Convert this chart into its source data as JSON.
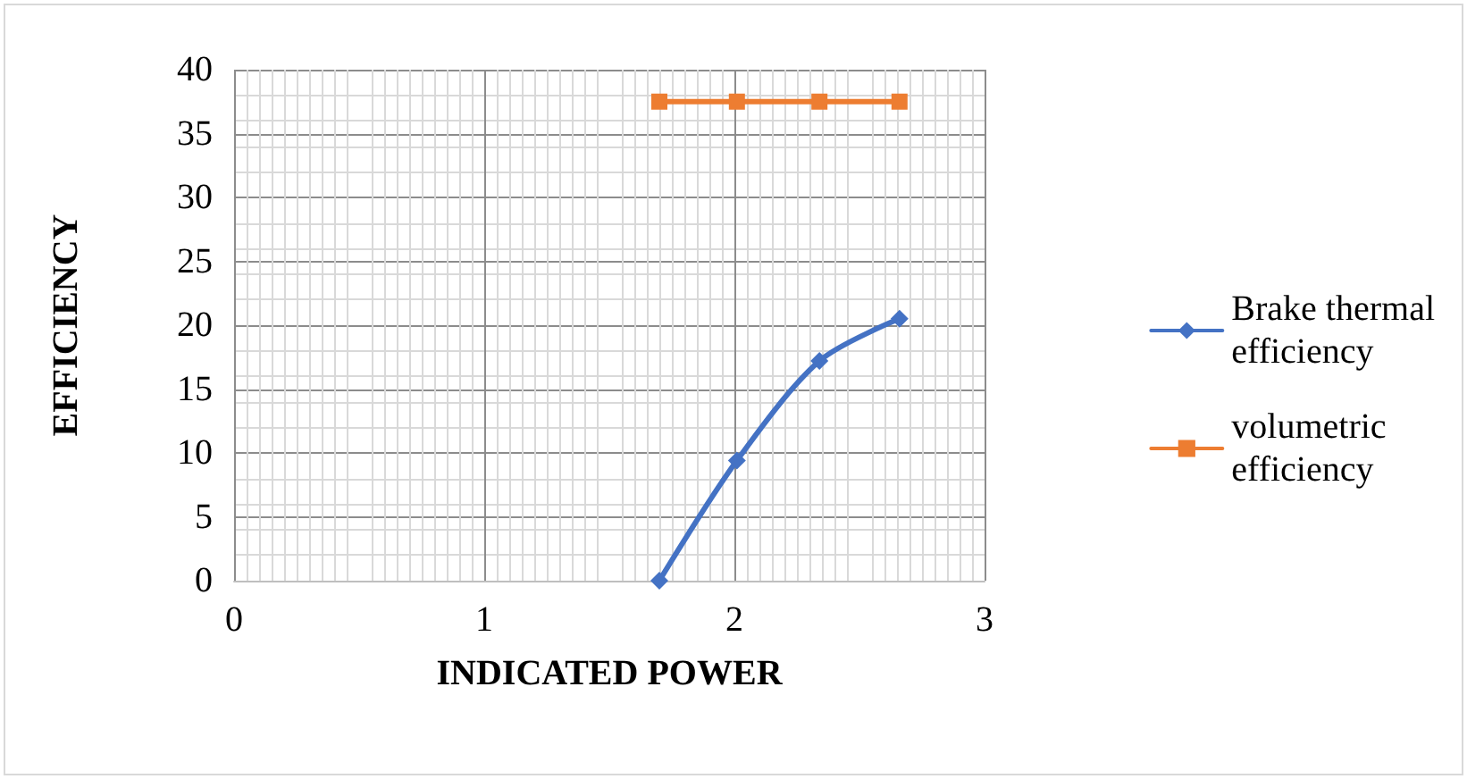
{
  "chart_data": {
    "type": "line",
    "xlabel": "INDICATED POWER",
    "ylabel": "EFFICIENCY",
    "series": [
      {
        "name": "Brake thermal efficiency",
        "color": "#4472c4",
        "x": [
          1.7,
          2.01,
          2.34,
          2.66
        ],
        "values": [
          0,
          9.4,
          17.2,
          20.5
        ]
      },
      {
        "name": "volumetric efficiency",
        "color": "#ed7d31",
        "x": [
          1.7,
          2.01,
          2.34,
          2.66
        ],
        "values": [
          37.5,
          37.5,
          37.5,
          37.5
        ],
        "marker": "square"
      }
    ],
    "marker": "diamond",
    "line_style": "solid",
    "xlim": [
      0,
      3
    ],
    "xticks": [
      0,
      1,
      2,
      3
    ],
    "ylim": [
      0,
      40
    ],
    "yticks": [
      0,
      5,
      10,
      15,
      20,
      25,
      30,
      35,
      40
    ],
    "grid": true,
    "legend": "right"
  }
}
